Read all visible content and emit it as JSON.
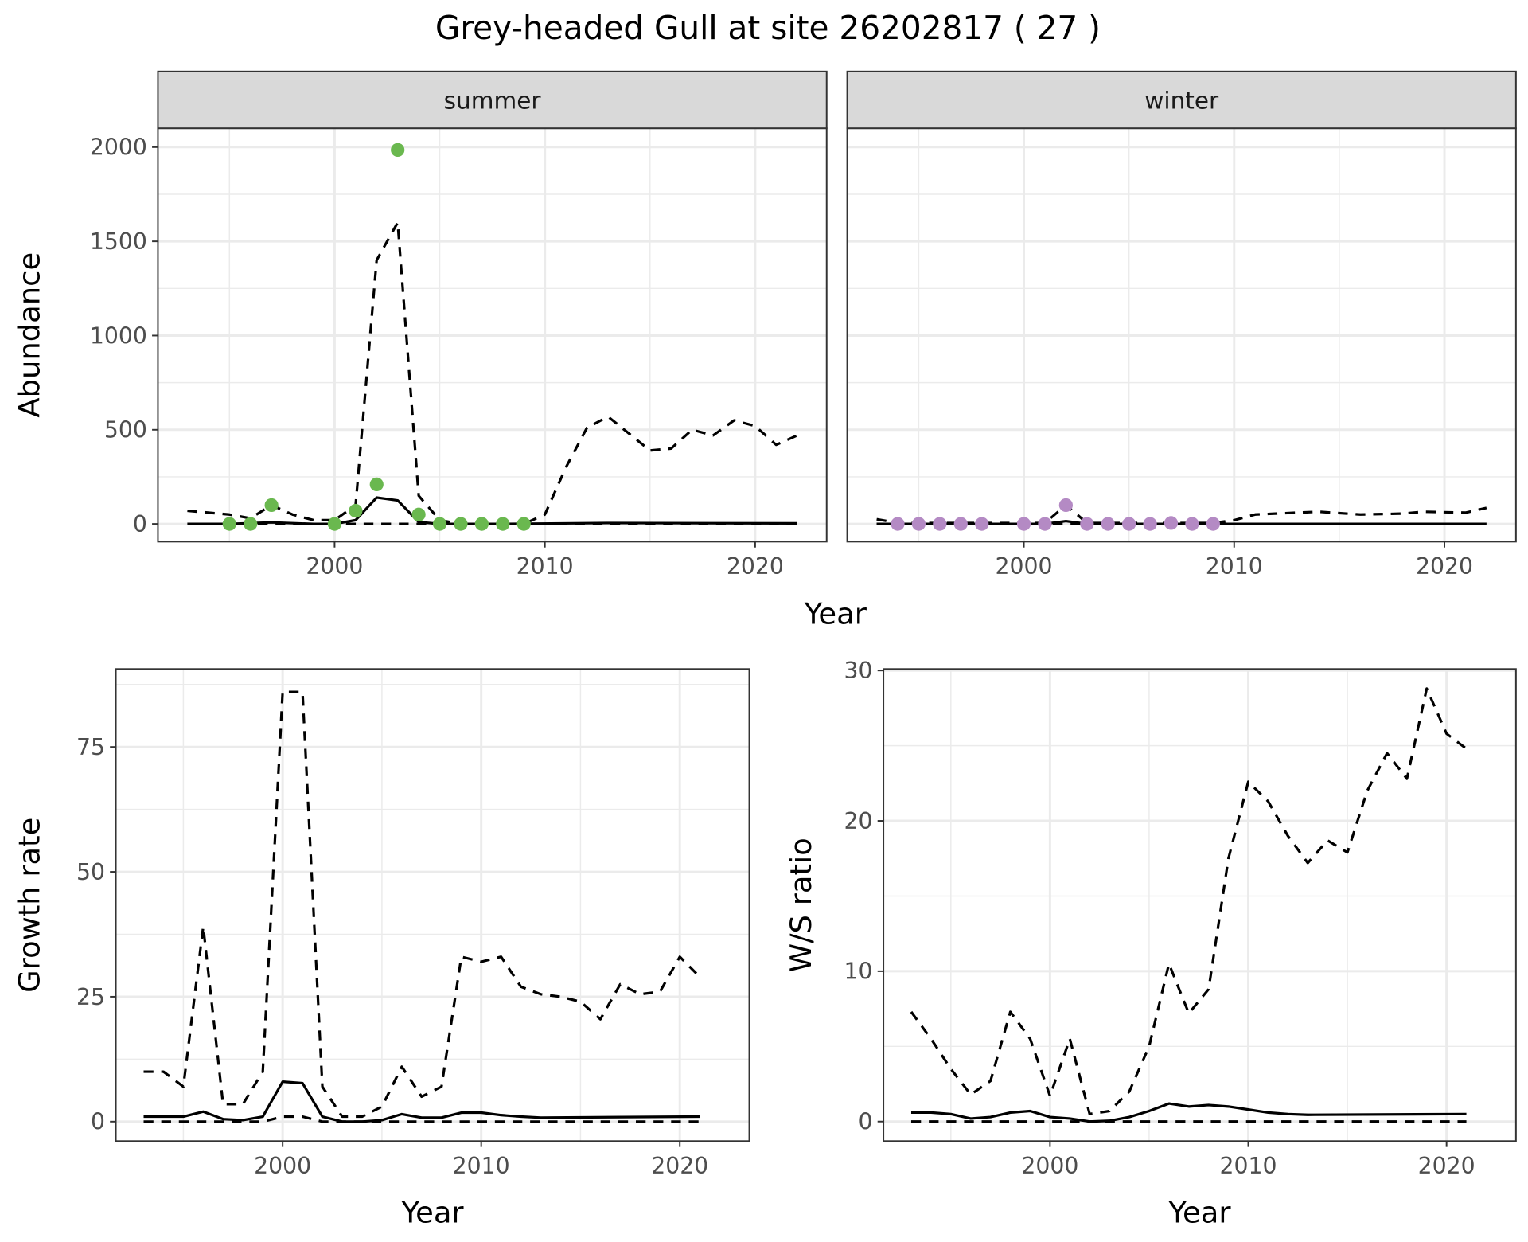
{
  "title": "Grey-headed Gull at site 26202817 ( 27 )",
  "colors": {
    "summer": "#6ab84f",
    "winter": "#b48ac4",
    "line": "#000000",
    "strip": "#d9d9d9",
    "grid": "#ebebeb"
  },
  "chart_data": [
    {
      "id": "abundance-summer",
      "type": "line",
      "facet": "summer",
      "xlabel": "Year",
      "ylabel": "Abundance",
      "xlim": [
        1991.6,
        2023.4
      ],
      "ylim": [
        -94,
        2100
      ],
      "xticks": [
        2000,
        2010,
        2020
      ],
      "yticks": [
        0,
        500,
        1000,
        1500,
        2000
      ],
      "grid": true,
      "points": {
        "x": [
          1995,
          1996,
          1997,
          2000,
          2001,
          2002,
          2003,
          2004,
          2005,
          2006,
          2007,
          2008,
          2009
        ],
        "y": [
          0,
          0,
          100,
          0,
          70,
          210,
          1985,
          50,
          0,
          0,
          0,
          0,
          0
        ]
      },
      "series": [
        {
          "name": "fit",
          "style": "solid",
          "x": [
            1993,
            1995,
            1997,
            1999,
            2000,
            2001,
            2002,
            2003,
            2004,
            2005,
            2008,
            2013,
            2022
          ],
          "y": [
            0,
            0,
            8,
            0,
            0,
            20,
            140,
            125,
            10,
            0,
            0,
            5,
            3
          ]
        },
        {
          "name": "upper",
          "style": "dashed",
          "x": [
            1993,
            1995,
            1996,
            1997,
            1998,
            1999,
            2000,
            2001,
            2002,
            2003,
            2004,
            2005,
            2006,
            2009,
            2010,
            2011,
            2012,
            2013,
            2014,
            2015,
            2016,
            2017,
            2018,
            2019,
            2020,
            2021,
            2022
          ],
          "y": [
            70,
            50,
            30,
            100,
            50,
            20,
            20,
            100,
            1400,
            1600,
            150,
            20,
            0,
            0,
            50,
            300,
            510,
            570,
            480,
            390,
            400,
            500,
            470,
            550,
            520,
            420,
            470
          ]
        },
        {
          "name": "lower",
          "style": "dashed",
          "x": [
            1993,
            2022
          ],
          "y": [
            0,
            0
          ]
        }
      ]
    },
    {
      "id": "abundance-winter",
      "type": "line",
      "facet": "winter",
      "xlabel": "Year",
      "ylabel": "Abundance",
      "xlim": [
        1991.6,
        2023.4
      ],
      "ylim": [
        -94,
        2100
      ],
      "xticks": [
        2000,
        2010,
        2020
      ],
      "yticks": [
        0,
        500,
        1000,
        1500,
        2000
      ],
      "grid": true,
      "points": {
        "x": [
          1994,
          1995,
          1996,
          1997,
          1998,
          2000,
          2001,
          2002,
          2003,
          2004,
          2005,
          2006,
          2007,
          2008,
          2009
        ],
        "y": [
          0,
          0,
          0,
          0,
          0,
          0,
          0,
          100,
          0,
          0,
          0,
          0,
          5,
          0,
          0
        ]
      },
      "series": [
        {
          "name": "fit",
          "style": "solid",
          "x": [
            1993,
            2001,
            2002,
            2003,
            2022
          ],
          "y": [
            0,
            0,
            15,
            0,
            0
          ]
        },
        {
          "name": "upper",
          "style": "dashed",
          "x": [
            1993,
            1994,
            2001,
            2002,
            2003,
            2009,
            2010,
            2011,
            2014,
            2016,
            2018,
            2019,
            2021,
            2022
          ],
          "y": [
            25,
            5,
            5,
            100,
            5,
            5,
            20,
            50,
            65,
            50,
            55,
            65,
            60,
            85
          ]
        },
        {
          "name": "lower",
          "style": "dashed",
          "x": [
            1993,
            2022
          ],
          "y": [
            0,
            0
          ]
        }
      ]
    },
    {
      "id": "growth-rate",
      "type": "line",
      "xlabel": "Year",
      "ylabel": "Growth rate",
      "xlim": [
        1991.6,
        2023.5
      ],
      "ylim": [
        -3.9,
        90.6
      ],
      "xticks": [
        2000,
        2010,
        2020
      ],
      "yticks": [
        0,
        25,
        50,
        75
      ],
      "grid": true,
      "series": [
        {
          "name": "fit",
          "style": "solid",
          "x": [
            1993,
            1994,
            1995,
            1996,
            1997,
            1998,
            1999,
            2000,
            2001,
            2002,
            2003,
            2004,
            2005,
            2006,
            2007,
            2008,
            2009,
            2010,
            2011,
            2012,
            2013,
            2021
          ],
          "y": [
            1,
            1,
            1,
            2,
            0.5,
            0.3,
            1,
            8,
            7.7,
            1,
            0,
            0,
            0.3,
            1.5,
            0.8,
            0.8,
            1.8,
            1.8,
            1.3,
            1,
            0.8,
            1
          ]
        },
        {
          "name": "upper",
          "style": "dashed",
          "x": [
            1993,
            1994,
            1995,
            1996,
            1997,
            1998,
            1999,
            2000,
            2001,
            2002,
            2003,
            2004,
            2005,
            2006,
            2007,
            2008,
            2009,
            2010,
            2011,
            2012,
            2013,
            2014,
            2015,
            2016,
            2017,
            2018,
            2019,
            2020,
            2021
          ],
          "y": [
            10,
            10,
            7,
            39,
            3.5,
            3.5,
            10,
            86,
            86,
            7,
            1,
            1,
            3,
            11,
            5,
            7,
            33,
            32,
            33,
            27,
            25.5,
            25,
            24,
            20.5,
            27.5,
            25.5,
            26,
            33,
            29
          ]
        },
        {
          "name": "lower",
          "style": "dashed",
          "x": [
            1993,
            1999,
            2000,
            2001,
            2002,
            2021
          ],
          "y": [
            0,
            0,
            1,
            1,
            0,
            0
          ]
        }
      ]
    },
    {
      "id": "ws-ratio",
      "type": "line",
      "xlabel": "Year",
      "ylabel": "W/S ratio",
      "xlim": [
        1991.6,
        2023.5
      ],
      "ylim": [
        -1.3,
        30.1
      ],
      "xticks": [
        2000,
        2010,
        2020
      ],
      "yticks": [
        0,
        10,
        20,
        30
      ],
      "grid": true,
      "series": [
        {
          "name": "fit",
          "style": "solid",
          "x": [
            1993,
            1994,
            1995,
            1996,
            1997,
            1998,
            1999,
            2000,
            2001,
            2002,
            2003,
            2004,
            2005,
            2006,
            2007,
            2008,
            2009,
            2010,
            2011,
            2012,
            2013,
            2021
          ],
          "y": [
            0.6,
            0.6,
            0.5,
            0.2,
            0.3,
            0.6,
            0.7,
            0.3,
            0.2,
            0,
            0.05,
            0.3,
            0.7,
            1.2,
            1.0,
            1.1,
            1.0,
            0.8,
            0.6,
            0.5,
            0.45,
            0.5
          ]
        },
        {
          "name": "upper",
          "style": "dashed",
          "x": [
            1993,
            1994,
            1995,
            1996,
            1997,
            1998,
            1999,
            2000,
            2001,
            2002,
            2003,
            2004,
            2005,
            2006,
            2007,
            2008,
            2009,
            2010,
            2011,
            2012,
            2013,
            2014,
            2015,
            2016,
            2017,
            2018,
            2019,
            2020,
            2021
          ],
          "y": [
            7.3,
            5.5,
            3.5,
            1.8,
            2.7,
            7.3,
            5.5,
            1.7,
            5.5,
            0.5,
            0.7,
            2,
            5,
            10.5,
            7.2,
            8.8,
            17.5,
            22.6,
            21.3,
            19,
            17.2,
            18.7,
            17.9,
            22,
            24.5,
            22.8,
            28.8,
            25.8,
            24.8
          ]
        },
        {
          "name": "lower",
          "style": "dashed",
          "x": [
            1993,
            2021
          ],
          "y": [
            0,
            0
          ]
        }
      ]
    }
  ]
}
